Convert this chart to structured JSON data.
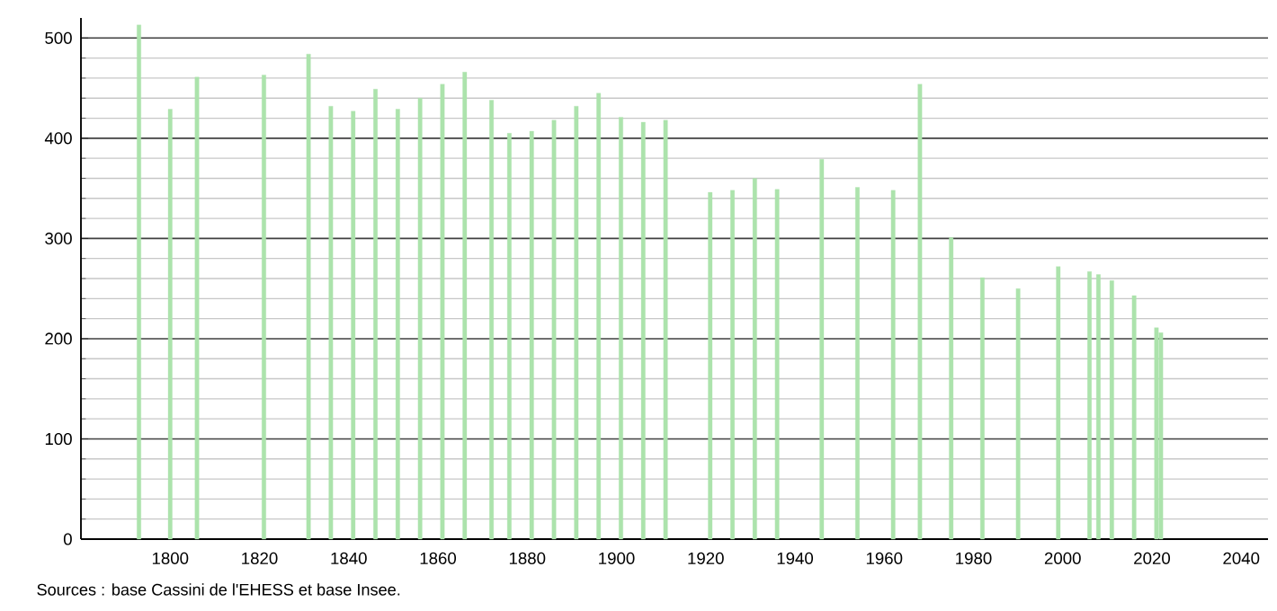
{
  "chart_data": {
    "type": "bar",
    "series": [
      {
        "color": "#ace3ac",
        "x": [
          1793,
          1800,
          1806,
          1821,
          1831,
          1836,
          1841,
          1846,
          1851,
          1856,
          1861,
          1866,
          1872,
          1876,
          1881,
          1886,
          1891,
          1896,
          1901,
          1906,
          1911,
          1921,
          1926,
          1931,
          1936,
          1946,
          1954,
          1962,
          1968,
          1975,
          1982,
          1990,
          1999,
          2006,
          2008,
          2011,
          2016,
          2021,
          2022
        ],
        "values": [
          513,
          429,
          461,
          463,
          484,
          432,
          427,
          449,
          429,
          440,
          454,
          466,
          438,
          405,
          407,
          418,
          432,
          445,
          421,
          416,
          418,
          346,
          348,
          360,
          349,
          379,
          351,
          348,
          454,
          301,
          261,
          250,
          272,
          267,
          264,
          258,
          243,
          211,
          206
        ]
      }
    ],
    "xlim": [
      1780,
      2046
    ],
    "xticks": [
      1800,
      1820,
      1840,
      1860,
      1880,
      1900,
      1920,
      1940,
      1960,
      1980,
      2000,
      2020,
      2040
    ],
    "ylim": [
      0,
      520
    ],
    "yticks": [
      0,
      100,
      200,
      300,
      400,
      500
    ],
    "grid": "y",
    "annotations": [
      "Sources : base Cassini de l'EHESS et base Insee."
    ]
  }
}
